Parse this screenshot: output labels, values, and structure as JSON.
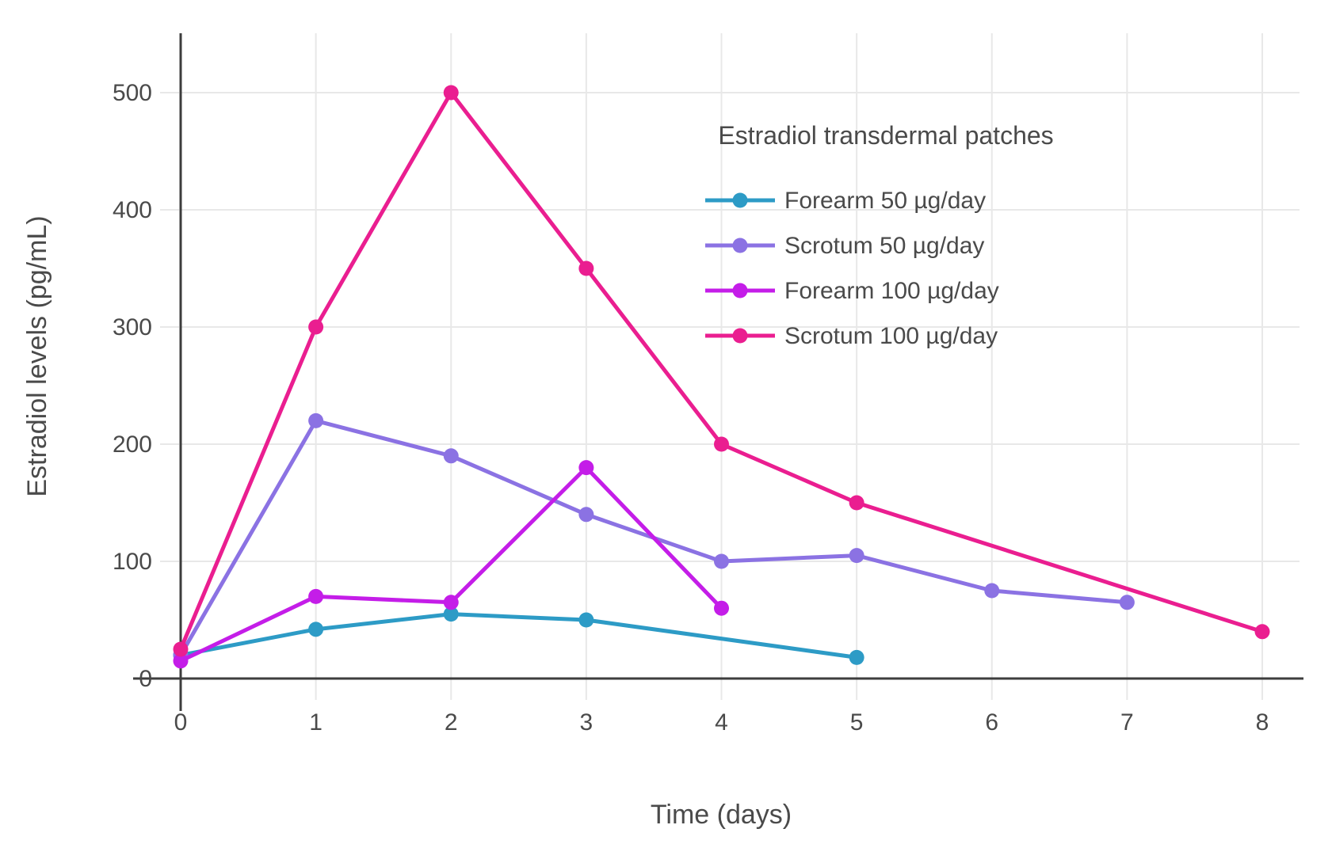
{
  "chart_data": {
    "type": "line",
    "xlabel": "Time (days)",
    "ylabel": "Estradiol levels (pg/mL)",
    "legend_title": "Estradiol transdermal patches",
    "legend_position": "top-right-inside",
    "grid": true,
    "xlim": [
      0,
      8
    ],
    "ylim": [
      0,
      550
    ],
    "x_ticks": [
      0,
      1,
      2,
      3,
      4,
      5,
      6,
      7,
      8
    ],
    "y_ticks": [
      0,
      100,
      200,
      300,
      400,
      500
    ],
    "series": [
      {
        "name": "Forearm 50 µg/day",
        "color": "#2d9bc6",
        "points": [
          [
            0,
            20
          ],
          [
            1,
            42
          ],
          [
            2,
            55
          ],
          [
            3,
            50
          ],
          [
            5,
            18
          ]
        ]
      },
      {
        "name": "Scrotum 50 µg/day",
        "color": "#8b72e3",
        "points": [
          [
            0,
            20
          ],
          [
            1,
            220
          ],
          [
            2,
            190
          ],
          [
            3,
            140
          ],
          [
            4,
            100
          ],
          [
            5,
            105
          ],
          [
            6,
            75
          ],
          [
            7,
            65
          ]
        ]
      },
      {
        "name": "Forearm 100 µg/day",
        "color": "#c41de8",
        "points": [
          [
            0,
            15
          ],
          [
            1,
            70
          ],
          [
            2,
            65
          ],
          [
            3,
            180
          ],
          [
            4,
            60
          ]
        ]
      },
      {
        "name": "Scrotum 100 µg/day",
        "color": "#ea1e90",
        "points": [
          [
            0,
            25
          ],
          [
            1,
            300
          ],
          [
            2,
            500
          ],
          [
            3,
            350
          ],
          [
            4,
            200
          ],
          [
            5,
            150
          ],
          [
            8,
            40
          ]
        ]
      }
    ]
  },
  "colors": {
    "background": "#ffffff",
    "grid": "#e8e8e8",
    "axis": "#3d3d3d",
    "text": "#4a4a4a"
  }
}
